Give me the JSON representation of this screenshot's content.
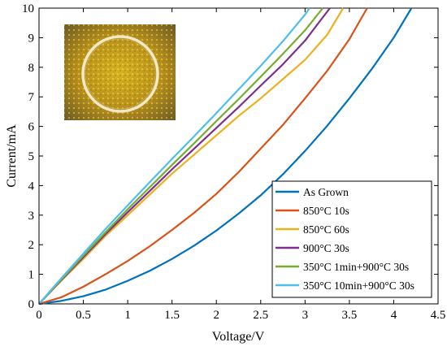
{
  "chart_data": {
    "type": "line",
    "xlabel": "Voltage/V",
    "ylabel": "Current/mA",
    "xlim": [
      0,
      4.5
    ],
    "ylim": [
      0,
      10
    ],
    "xticks": [
      "0",
      "0.5",
      "1",
      "1.5",
      "2",
      "2.5",
      "3",
      "3.5",
      "4",
      "4.5"
    ],
    "yticks": [
      "0",
      "1",
      "2",
      "3",
      "4",
      "5",
      "6",
      "7",
      "8",
      "9",
      "10"
    ],
    "grid": false,
    "legend_position": "bottom-right",
    "inset_image": "microscope-photo-circular-contact-on-gold-surface",
    "series": [
      {
        "name": "As Grown",
        "color": "#0072BD",
        "x": [
          0,
          0.25,
          0.5,
          0.75,
          1.0,
          1.25,
          1.5,
          1.75,
          2.0,
          2.25,
          2.5,
          2.75,
          3.0,
          3.25,
          3.5,
          3.75,
          4.0,
          4.2
        ],
        "y": [
          0,
          0.1,
          0.26,
          0.48,
          0.78,
          1.12,
          1.52,
          1.97,
          2.48,
          3.05,
          3.67,
          4.38,
          5.17,
          6.02,
          6.95,
          7.93,
          9.0,
          10.0
        ]
      },
      {
        "name": "850°C 10s",
        "color": "#D95319",
        "x": [
          0,
          0.25,
          0.5,
          0.75,
          1.0,
          1.25,
          1.5,
          1.75,
          2.0,
          2.25,
          2.5,
          2.75,
          3.0,
          3.25,
          3.5,
          3.7
        ],
        "y": [
          0,
          0.22,
          0.58,
          1.0,
          1.45,
          1.95,
          2.5,
          3.08,
          3.72,
          4.45,
          5.25,
          6.05,
          6.95,
          7.88,
          8.95,
          10.0
        ]
      },
      {
        "name": "850°C 60s",
        "color": "#EDB120",
        "x": [
          0,
          0.25,
          0.5,
          0.75,
          1.0,
          1.25,
          1.5,
          1.75,
          2.0,
          2.25,
          2.5,
          2.75,
          3.0,
          3.25,
          3.43
        ],
        "y": [
          0,
          0.78,
          1.52,
          2.3,
          3.0,
          3.7,
          4.4,
          5.05,
          5.7,
          6.35,
          6.95,
          7.6,
          8.25,
          9.1,
          10.0
        ]
      },
      {
        "name": "900°C 30s",
        "color": "#7E2F8E",
        "x": [
          0,
          0.25,
          0.5,
          0.75,
          1.0,
          1.25,
          1.5,
          1.75,
          2.0,
          2.25,
          2.5,
          2.75,
          3.0,
          3.28
        ],
        "y": [
          0,
          0.8,
          1.58,
          2.36,
          3.1,
          3.82,
          4.55,
          5.25,
          5.95,
          6.65,
          7.38,
          8.1,
          8.9,
          10.0
        ]
      },
      {
        "name": "350°C 1min+900°C 30s",
        "color": "#77AC30",
        "x": [
          0,
          0.25,
          0.5,
          0.75,
          1.0,
          1.25,
          1.5,
          1.75,
          2.0,
          2.25,
          2.5,
          2.75,
          3.0,
          3.2
        ],
        "y": [
          0,
          0.82,
          1.63,
          2.42,
          3.2,
          3.95,
          4.7,
          5.43,
          6.18,
          6.92,
          7.68,
          8.45,
          9.25,
          10.0
        ]
      },
      {
        "name": "350°C 10min+900°C 30s",
        "color": "#4DBEEE",
        "x": [
          0,
          0.25,
          0.5,
          0.75,
          1.0,
          1.25,
          1.5,
          1.75,
          2.0,
          2.25,
          2.5,
          2.75,
          3.0,
          3.05
        ],
        "y": [
          0,
          0.86,
          1.7,
          2.53,
          3.33,
          4.12,
          4.9,
          5.67,
          6.45,
          7.25,
          8.05,
          8.88,
          9.78,
          10.0
        ]
      }
    ]
  }
}
